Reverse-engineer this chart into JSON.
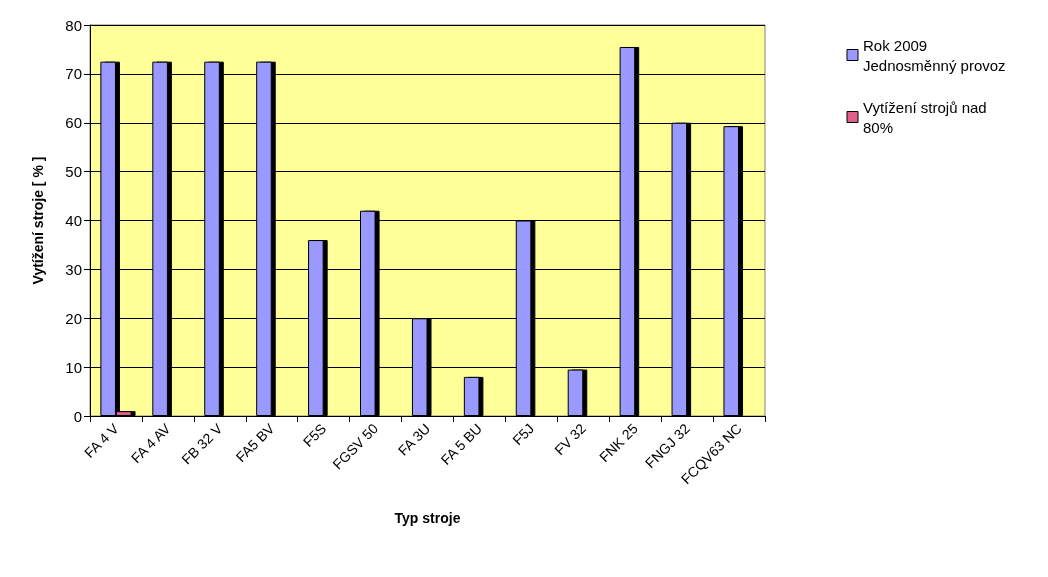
{
  "chart_data": {
    "type": "bar",
    "xlabel": "Typ stroje",
    "ylabel": "Vytížení stroje [ % ]",
    "categories": [
      "FA 4 V",
      "FA 4 AV",
      "FB 32 V",
      "FA5 BV",
      "F5S",
      "FGSV 50",
      "FA 3U",
      "FA 5 BU",
      "F5J",
      "FV 32",
      "FNK 25",
      "FNGJ 32",
      "FCQV63 NC"
    ],
    "series": [
      {
        "name": "Rok 2009 Jednosměnný provoz",
        "color": "#9999ff",
        "values": [
          72.5,
          72.5,
          72.5,
          72.5,
          36,
          42,
          20,
          8,
          40,
          9.5,
          75.5,
          60,
          59.3
        ]
      },
      {
        "name": "Vytížení strojů nad 80%",
        "color": "#e0608a",
        "values": [
          1,
          null,
          null,
          null,
          null,
          null,
          null,
          null,
          null,
          null,
          null,
          null,
          null
        ]
      }
    ],
    "ylim": [
      0,
      80
    ],
    "yticks": [
      0,
      10,
      20,
      30,
      40,
      50,
      60,
      70,
      80
    ],
    "grid": "y",
    "legend": "right"
  }
}
